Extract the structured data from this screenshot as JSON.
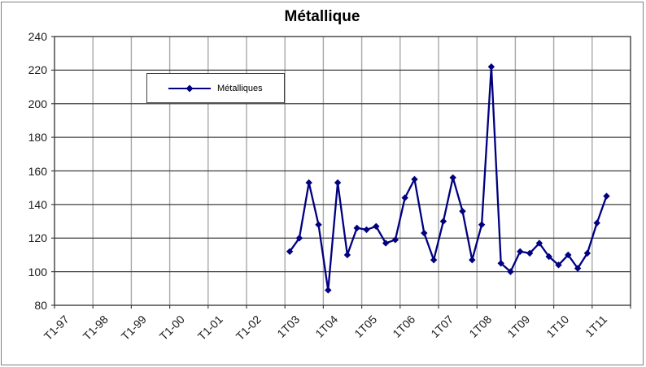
{
  "chart": {
    "title": "Métallique",
    "legend_label": "Métalliques"
  },
  "chart_data": {
    "type": "line",
    "title": "Métallique",
    "xlabel": "",
    "ylabel": "",
    "ylim": [
      80,
      240
    ],
    "y_ticks": [
      80,
      100,
      120,
      140,
      160,
      180,
      200,
      220,
      240
    ],
    "x_tick_labels": [
      "T1-97",
      "T1-98",
      "T1-99",
      "T1-00",
      "T1-01",
      "T1-02",
      "1T03",
      "1T04",
      "1T05",
      "1T06",
      "1T07",
      "1T08",
      "1T09",
      "1T10",
      "1T11"
    ],
    "quarters_per_tick": 4,
    "total_quarters": 60,
    "grid": true,
    "legend_position": "inside-top-left",
    "series": [
      {
        "name": "Métalliques",
        "start_quarter_index": 24,
        "x": [
          "1T03",
          "2T03",
          "3T03",
          "4T03",
          "1T04",
          "2T04",
          "3T04",
          "4T04",
          "1T05",
          "2T05",
          "3T05",
          "4T05",
          "1T06",
          "2T06",
          "3T06",
          "4T06",
          "1T07",
          "2T07",
          "3T07",
          "4T07",
          "1T08",
          "2T08",
          "3T08",
          "4T08",
          "1T09",
          "2T09",
          "3T09",
          "4T09",
          "1T10",
          "2T10",
          "3T10",
          "4T10",
          "1T11",
          "2T11"
        ],
        "values": [
          112,
          120,
          153,
          128,
          89,
          153,
          110,
          126,
          125,
          127,
          117,
          119,
          144,
          155,
          123,
          107,
          130,
          156,
          136,
          107,
          128,
          222,
          105,
          100,
          112,
          111,
          117,
          109,
          104,
          110,
          102,
          111,
          129,
          145
        ]
      }
    ],
    "colors": {
      "line": "#000080",
      "grid_horizontal": "#3f3f3f",
      "grid_vertical": "#a8a8a8",
      "plot_border": "#3f3f3f",
      "chart_border": "#7f7f7f",
      "text": "#1a1a1a",
      "background": "#ffffff"
    }
  }
}
